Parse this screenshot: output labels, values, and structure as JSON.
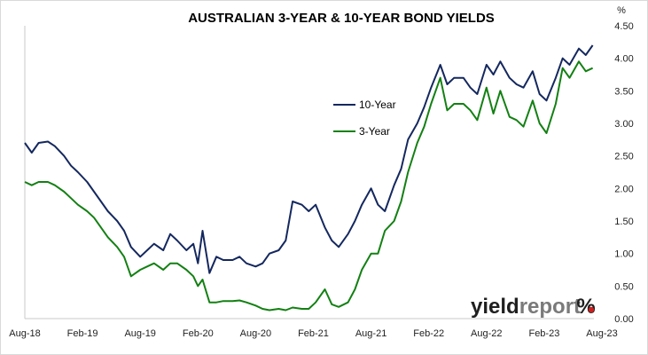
{
  "chart_data": {
    "type": "line",
    "title": "AUSTRALIAN 3-YEAR & 10-YEAR BOND YIELDS",
    "ylabel": "%",
    "ylim": [
      0,
      4.5
    ],
    "yticks": [
      "0.00",
      "0.50",
      "1.00",
      "1.50",
      "2.00",
      "2.50",
      "3.00",
      "3.50",
      "4.00",
      "4.50"
    ],
    "xticks": [
      "Aug-18",
      "Feb-19",
      "Aug-19",
      "Feb-20",
      "Aug-20",
      "Feb-21",
      "Aug-21",
      "Feb-22",
      "Aug-22",
      "Feb-23",
      "Aug-23"
    ],
    "grid": "vertical-left-axis-only",
    "legend_position": "center",
    "series": [
      {
        "name": "10-Year",
        "color": "#14285f",
        "values": [
          [
            0,
            2.7
          ],
          [
            0.3,
            2.55
          ],
          [
            0.6,
            2.7
          ],
          [
            1,
            2.72
          ],
          [
            1.3,
            2.65
          ],
          [
            1.7,
            2.5
          ],
          [
            2,
            2.35
          ],
          [
            2.3,
            2.25
          ],
          [
            2.7,
            2.1
          ],
          [
            3,
            1.95
          ],
          [
            3.3,
            1.8
          ],
          [
            3.6,
            1.65
          ],
          [
            4,
            1.5
          ],
          [
            4.3,
            1.35
          ],
          [
            4.6,
            1.1
          ],
          [
            5,
            0.95
          ],
          [
            5.3,
            1.05
          ],
          [
            5.6,
            1.15
          ],
          [
            6,
            1.05
          ],
          [
            6.3,
            1.3
          ],
          [
            6.6,
            1.2
          ],
          [
            7,
            1.05
          ],
          [
            7.3,
            1.15
          ],
          [
            7.5,
            0.85
          ],
          [
            7.7,
            1.35
          ],
          [
            8,
            0.7
          ],
          [
            8.3,
            0.95
          ],
          [
            8.6,
            0.9
          ],
          [
            9,
            0.9
          ],
          [
            9.3,
            0.95
          ],
          [
            9.6,
            0.85
          ],
          [
            10,
            0.8
          ],
          [
            10.3,
            0.85
          ],
          [
            10.6,
            1.0
          ],
          [
            11,
            1.05
          ],
          [
            11.3,
            1.2
          ],
          [
            11.6,
            1.8
          ],
          [
            12,
            1.75
          ],
          [
            12.3,
            1.65
          ],
          [
            12.6,
            1.75
          ],
          [
            13,
            1.4
          ],
          [
            13.3,
            1.2
          ],
          [
            13.6,
            1.1
          ],
          [
            14,
            1.3
          ],
          [
            14.3,
            1.5
          ],
          [
            14.6,
            1.75
          ],
          [
            15,
            2.0
          ],
          [
            15.3,
            1.75
          ],
          [
            15.6,
            1.65
          ],
          [
            16,
            2.05
          ],
          [
            16.3,
            2.3
          ],
          [
            16.6,
            2.75
          ],
          [
            17,
            3.0
          ],
          [
            17.3,
            3.25
          ],
          [
            17.6,
            3.55
          ],
          [
            18,
            3.9
          ],
          [
            18.3,
            3.6
          ],
          [
            18.6,
            3.7
          ],
          [
            19,
            3.7
          ],
          [
            19.3,
            3.55
          ],
          [
            19.6,
            3.45
          ],
          [
            20,
            3.9
          ],
          [
            20.3,
            3.75
          ],
          [
            20.6,
            3.95
          ],
          [
            21,
            3.7
          ],
          [
            21.3,
            3.6
          ],
          [
            21.6,
            3.55
          ],
          [
            22,
            3.8
          ],
          [
            22.3,
            3.45
          ],
          [
            22.6,
            3.35
          ],
          [
            23,
            3.7
          ],
          [
            23.3,
            4.0
          ],
          [
            23.6,
            3.9
          ],
          [
            24,
            4.15
          ],
          [
            24.3,
            4.05
          ],
          [
            24.6,
            4.2
          ]
        ]
      },
      {
        "name": "3-Year",
        "color": "#138013",
        "values": [
          [
            0,
            2.1
          ],
          [
            0.3,
            2.05
          ],
          [
            0.6,
            2.1
          ],
          [
            1,
            2.1
          ],
          [
            1.3,
            2.05
          ],
          [
            1.7,
            1.95
          ],
          [
            2,
            1.85
          ],
          [
            2.3,
            1.75
          ],
          [
            2.7,
            1.65
          ],
          [
            3,
            1.55
          ],
          [
            3.3,
            1.4
          ],
          [
            3.6,
            1.25
          ],
          [
            4,
            1.1
          ],
          [
            4.3,
            0.95
          ],
          [
            4.6,
            0.65
          ],
          [
            5,
            0.75
          ],
          [
            5.3,
            0.8
          ],
          [
            5.6,
            0.85
          ],
          [
            6,
            0.75
          ],
          [
            6.3,
            0.85
          ],
          [
            6.6,
            0.85
          ],
          [
            7,
            0.75
          ],
          [
            7.3,
            0.65
          ],
          [
            7.5,
            0.5
          ],
          [
            7.7,
            0.6
          ],
          [
            8,
            0.25
          ],
          [
            8.3,
            0.25
          ],
          [
            8.6,
            0.27
          ],
          [
            9,
            0.27
          ],
          [
            9.3,
            0.28
          ],
          [
            9.6,
            0.25
          ],
          [
            10,
            0.2
          ],
          [
            10.3,
            0.15
          ],
          [
            10.6,
            0.13
          ],
          [
            11,
            0.15
          ],
          [
            11.3,
            0.13
          ],
          [
            11.6,
            0.17
          ],
          [
            12,
            0.15
          ],
          [
            12.3,
            0.15
          ],
          [
            12.6,
            0.25
          ],
          [
            13,
            0.45
          ],
          [
            13.3,
            0.22
          ],
          [
            13.6,
            0.18
          ],
          [
            14,
            0.25
          ],
          [
            14.3,
            0.45
          ],
          [
            14.6,
            0.75
          ],
          [
            15,
            1.0
          ],
          [
            15.3,
            1.0
          ],
          [
            15.6,
            1.35
          ],
          [
            16,
            1.5
          ],
          [
            16.3,
            1.8
          ],
          [
            16.6,
            2.25
          ],
          [
            17,
            2.7
          ],
          [
            17.3,
            2.95
          ],
          [
            17.6,
            3.3
          ],
          [
            18,
            3.7
          ],
          [
            18.3,
            3.2
          ],
          [
            18.6,
            3.3
          ],
          [
            19,
            3.3
          ],
          [
            19.3,
            3.2
          ],
          [
            19.6,
            3.05
          ],
          [
            20,
            3.55
          ],
          [
            20.3,
            3.15
          ],
          [
            20.6,
            3.5
          ],
          [
            21,
            3.1
          ],
          [
            21.3,
            3.05
          ],
          [
            21.6,
            2.95
          ],
          [
            22,
            3.35
          ],
          [
            22.3,
            3.0
          ],
          [
            22.6,
            2.85
          ],
          [
            23,
            3.3
          ],
          [
            23.3,
            3.85
          ],
          [
            23.6,
            3.7
          ],
          [
            24,
            3.95
          ],
          [
            24.3,
            3.8
          ],
          [
            24.6,
            3.85
          ]
        ]
      }
    ],
    "brand": {
      "part1": "yield",
      "part2": "report",
      "symbol": "%",
      "color_dark": "#1f1f1f",
      "color_light": "#7a7a7a",
      "color_accent": "#cc1f1f"
    }
  }
}
